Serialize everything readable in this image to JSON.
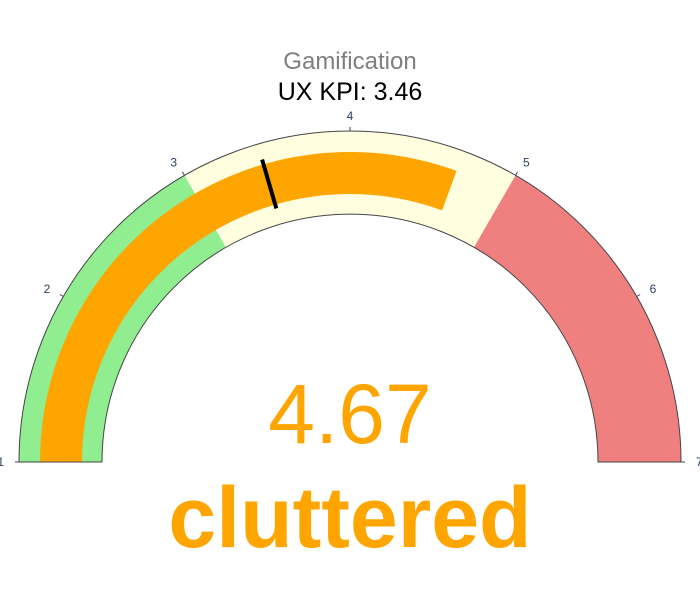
{
  "chart_data": {
    "type": "gauge",
    "title": "UX KPI: 3.46",
    "subtitle": "Gamification",
    "value": 4.67,
    "value_display": "4.67",
    "value_label": "cluttered",
    "range": [
      1,
      7
    ],
    "ticks": [
      {
        "value": 1,
        "label": "1"
      },
      {
        "value": 2,
        "label": "2"
      },
      {
        "value": 3,
        "label": "3"
      },
      {
        "value": 4,
        "label": "4"
      },
      {
        "value": 5,
        "label": "5"
      },
      {
        "value": 6,
        "label": "6"
      },
      {
        "value": 7,
        "label": "7"
      }
    ],
    "steps": [
      {
        "range": [
          1,
          3
        ],
        "color": "#90EE90"
      },
      {
        "range": [
          3,
          5
        ],
        "color": "#FFFFE0"
      },
      {
        "range": [
          5,
          7
        ],
        "color": "#F08080"
      }
    ],
    "bar_color": "#FFA500",
    "threshold": {
      "value": 3.46,
      "color": "#000000"
    }
  }
}
